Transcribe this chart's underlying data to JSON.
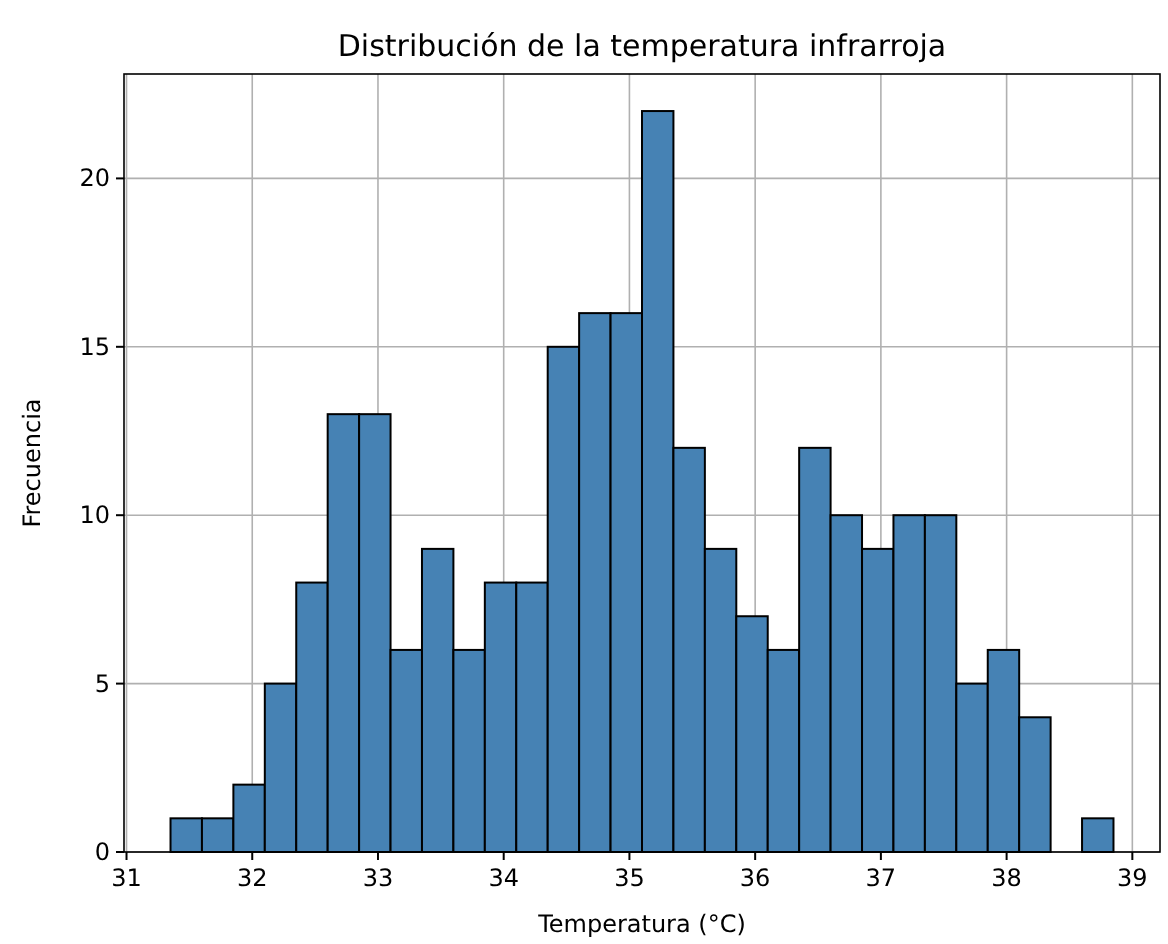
{
  "chart_data": {
    "type": "histogram",
    "title": "Distribución de la temperatura infrarroja",
    "xlabel": "Temperatura (°C)",
    "ylabel": "Frecuencia",
    "bins": [
      31.35,
      31.6,
      31.85,
      32.1,
      32.35,
      32.6,
      32.85,
      33.1,
      33.35,
      33.6,
      33.85,
      34.1,
      34.35,
      34.6,
      34.85,
      35.1,
      35.35,
      35.6,
      35.85,
      36.1,
      36.35,
      36.6,
      36.85,
      37.1,
      37.35,
      37.6,
      37.85,
      38.1,
      38.35,
      38.6,
      38.85
    ],
    "values": [
      1,
      1,
      2,
      5,
      8,
      13,
      13,
      6,
      9,
      6,
      8,
      8,
      15,
      16,
      16,
      22,
      12,
      9,
      7,
      6,
      12,
      10,
      9,
      10,
      10,
      5,
      6,
      4,
      0,
      1
    ],
    "color": "#4682b4",
    "xlim": [
      30.98,
      39.22
    ],
    "xticks": [
      31,
      32,
      33,
      34,
      35,
      36,
      37,
      38,
      39
    ],
    "ylim": [
      0,
      23.1
    ],
    "yticks": [
      0,
      5,
      10,
      15,
      20
    ],
    "grid": true
  }
}
